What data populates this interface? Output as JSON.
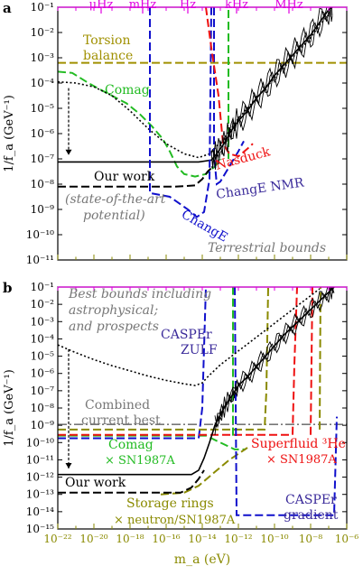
{
  "colors": {
    "magenta": "#e000e0",
    "olive": "#8a8a00",
    "torsion": "#a09000",
    "green": "#22bb22",
    "blue": "#1010cc",
    "red": "#ee1111",
    "black": "#000000",
    "gray": "#777777",
    "purple": "#3a2a9a"
  },
  "chart_data": [
    {
      "type": "line",
      "panel_label": "a",
      "ylabel": "1/f_a (GeV⁻¹)",
      "xlabel": "",
      "xscale": "log",
      "yscale": "log",
      "xlim": [
        1e-22,
        1e-06
      ],
      "ylim": [
        1e-11,
        0.1
      ],
      "x_ticks": [],
      "y_ticks": [
        "10⁻¹¹",
        "10⁻¹⁰",
        "10⁻⁹",
        "10⁻⁸",
        "10⁻⁷",
        "10⁻⁶",
        "10⁻⁵",
        "10⁻⁴",
        "10⁻³",
        "10⁻²",
        "10⁻¹"
      ],
      "top_axis_ticks": [
        "μHz",
        "mHz",
        "Hz",
        "kHz",
        "MHz"
      ],
      "annotations": [
        {
          "text": "Torsion",
          "role": "torsion1"
        },
        {
          "text": "balance",
          "role": "torsion2"
        },
        {
          "text": "Comag",
          "role": "comag"
        },
        {
          "text": "Nasduck",
          "role": "nasduck"
        },
        {
          "text": "Our work",
          "role": "ourwork"
        },
        {
          "text": "(state-of-the-art",
          "role": "sota1"
        },
        {
          "text": "potential)",
          "role": "sota2"
        },
        {
          "text": "ChangE",
          "role": "change"
        },
        {
          "text": "ChangE NMR",
          "role": "changenmr"
        },
        {
          "text": "Terrestrial bounds",
          "role": "terrestrial"
        }
      ],
      "series": [
        {
          "role": "torsion",
          "style": "dashed",
          "color": "#a09000",
          "points": [
            [
              -22,
              -3.2
            ],
            [
              -6,
              -3.2
            ]
          ]
        },
        {
          "role": "comag",
          "style": "dashed",
          "color": "#22bb22",
          "points": [
            [
              -22,
              -3.55
            ],
            [
              -21.2,
              -3.6
            ],
            [
              -20.3,
              -4.0
            ],
            [
              -19.8,
              -4.2
            ],
            [
              -19.0,
              -4.5
            ],
            [
              -18.2,
              -4.8
            ],
            [
              -17.5,
              -5.2
            ],
            [
              -16.8,
              -5.7
            ],
            [
              -16.2,
              -6.2
            ],
            [
              -15.8,
              -6.7
            ],
            [
              -15.4,
              -7.3
            ],
            [
              -15.0,
              -7.6
            ],
            [
              -14.4,
              -7.7
            ],
            [
              -13.8,
              -7.6
            ],
            [
              -13.3,
              -7.3
            ],
            [
              -13.0,
              -7.0
            ]
          ]
        },
        {
          "role": "comag_vertical",
          "style": "dashed",
          "color": "#22bb22",
          "points": [
            [
              -12.55,
              -7.0
            ],
            [
              -12.55,
              -1.0
            ]
          ]
        },
        {
          "role": "black_dotted",
          "style": "dotted",
          "color": "#000000",
          "points": [
            [
              -22,
              -3.95
            ],
            [
              -21,
              -4.0
            ],
            [
              -20,
              -4.15
            ],
            [
              -19,
              -4.5
            ],
            [
              -18,
              -5.1
            ],
            [
              -17,
              -5.8
            ],
            [
              -16,
              -6.4
            ],
            [
              -15,
              -6.8
            ],
            [
              -14.2,
              -6.95
            ],
            [
              -13.6,
              -6.8
            ],
            [
              -13.2,
              -6.5
            ],
            [
              -12.8,
              -6.2
            ],
            [
              -12.4,
              -5.8
            ],
            [
              -12.0,
              -5.4
            ],
            [
              -11.5,
              -5.0
            ],
            [
              -11.0,
              -4.6
            ],
            [
              -10.5,
              -4.2
            ],
            [
              -10.0,
              -3.8
            ],
            [
              -9.5,
              -3.4
            ],
            [
              -9.0,
              -3.0
            ],
            [
              -8.5,
              -2.6
            ],
            [
              -8.0,
              -2.2
            ],
            [
              -7.5,
              -1.7
            ],
            [
              -7.0,
              -1.3
            ]
          ]
        },
        {
          "role": "our_work_solid",
          "style": "solid",
          "color": "#000000",
          "points": [
            [
              -22,
              -7.12
            ],
            [
              -14.2,
              -7.12
            ],
            [
              -13.5,
              -7.05
            ],
            [
              -13.2,
              -6.8
            ],
            [
              -12.8,
              -6.4
            ],
            [
              -12.4,
              -5.9
            ],
            [
              -12.0,
              -5.5
            ],
            [
              -11.5,
              -5.1
            ],
            [
              -11.0,
              -4.6
            ],
            [
              -10.5,
              -4.2
            ],
            [
              -10.0,
              -3.7
            ],
            [
              -9.5,
              -3.3
            ],
            [
              -9.0,
              -2.9
            ],
            [
              -8.5,
              -2.5
            ],
            [
              -8.0,
              -2.1
            ],
            [
              -7.5,
              -1.6
            ],
            [
              -7.0,
              -1.1
            ],
            [
              -6.8,
              -1.0
            ]
          ]
        },
        {
          "role": "our_work_dashed",
          "style": "dashed",
          "color": "#000000",
          "points": [
            [
              -22,
              -8.1
            ],
            [
              -15.5,
              -8.1
            ],
            [
              -14.4,
              -8.05
            ],
            [
              -14.0,
              -7.8
            ],
            [
              -13.7,
              -7.5
            ],
            [
              -13.4,
              -7.3
            ]
          ]
        },
        {
          "role": "change",
          "style": "dashed",
          "color": "#1010cc",
          "points": [
            [
              -16.9,
              -1.0
            ],
            [
              -16.9,
              -8.35
            ],
            [
              -15.8,
              -8.5
            ],
            [
              -14.8,
              -9.0
            ],
            [
              -14.3,
              -9.3
            ],
            [
              -13.9,
              -9.1
            ],
            [
              -13.6,
              -7.8
            ],
            [
              -13.5,
              -1.0
            ]
          ]
        },
        {
          "role": "changenmr",
          "style": "dashed",
          "color": "#1010cc",
          "points": [
            [
              -13.35,
              -1.0
            ],
            [
              -13.35,
              -6.8
            ],
            [
              -13.2,
              -8.0
            ],
            [
              -13.0,
              -7.9
            ],
            [
              -12.5,
              -7.3
            ],
            [
              -12.0,
              -6.7
            ],
            [
              -11.7,
              -6.3
            ]
          ]
        },
        {
          "role": "nasduck",
          "style": "dashed",
          "color": "#ee1111",
          "points": [
            [
              -13.8,
              -1.0
            ],
            [
              -13.5,
              -2.6
            ],
            [
              -13.1,
              -4.5
            ],
            [
              -12.85,
              -6.4
            ],
            [
              -12.5,
              -6.8
            ],
            [
              -12.0,
              -6.9
            ],
            [
              -11.5,
              -6.6
            ],
            [
              -11.2,
              -6.4
            ]
          ]
        }
      ]
    },
    {
      "type": "line",
      "panel_label": "b",
      "ylabel": "1/f_a (GeV⁻¹)",
      "xlabel": "m_a (eV)",
      "xscale": "log",
      "yscale": "log",
      "xlim": [
        1e-22,
        1e-06
      ],
      "ylim": [
        1e-15,
        0.1
      ],
      "x_ticks": [
        "10⁻²²",
        "10⁻²⁰",
        "10⁻¹⁸",
        "10⁻¹⁶",
        "10⁻¹⁴",
        "10⁻¹²",
        "10⁻¹⁰",
        "10⁻⁸",
        "10⁻⁶"
      ],
      "y_ticks": [
        "10⁻¹⁵",
        "10⁻¹⁴",
        "10⁻¹³",
        "10⁻¹²",
        "10⁻¹¹",
        "10⁻¹⁰",
        "10⁻⁹",
        "10⁻⁸",
        "10⁻⁷",
        "10⁻⁶",
        "10⁻⁵",
        "10⁻⁴",
        "10⁻³",
        "10⁻²",
        "10⁻¹"
      ],
      "annotations": [
        {
          "text": "Best bounds including",
          "role": "best1"
        },
        {
          "text": "astrophysical;",
          "role": "best2"
        },
        {
          "text": "and prospects",
          "role": "best3"
        },
        {
          "text": "CASPEr",
          "role": "zulf1"
        },
        {
          "text": "ZULF",
          "role": "zulf2"
        },
        {
          "text": "Combined",
          "role": "comb1"
        },
        {
          "text": "current best",
          "role": "comb2"
        },
        {
          "text": "Comag",
          "role": "comag"
        },
        {
          "text": "× SN1987A",
          "role": "comag_sn"
        },
        {
          "text": "Superfluid ³He",
          "role": "he3"
        },
        {
          "text": "× SN1987A",
          "role": "he3_sn"
        },
        {
          "text": "Our work",
          "role": "ourwork"
        },
        {
          "text": "Storage rings",
          "role": "sr1"
        },
        {
          "text": "× neutron/SN1987A",
          "role": "sr2"
        },
        {
          "text": "CASPEr",
          "role": "grad1"
        },
        {
          "text": "gradient",
          "role": "grad2"
        }
      ],
      "series": [
        {
          "role": "combined",
          "style": "dashdot",
          "color": "#777777",
          "points": [
            [
              -22,
              -8.95
            ],
            [
              -6,
              -8.95
            ]
          ]
        },
        {
          "role": "comag_sn",
          "style": "dashed",
          "color": "#22bb22",
          "points": [
            [
              -22,
              -9.6
            ],
            [
              -13.8,
              -9.6
            ],
            [
              -13.0,
              -10.0
            ],
            [
              -12.2,
              -10.4
            ],
            [
              -11.6,
              -10.4
            ]
          ]
        },
        {
          "role": "comag_vertical",
          "style": "dashed",
          "color": "#22bb22",
          "points": [
            [
              -12.3,
              -9.6
            ],
            [
              -12.3,
              -1.0
            ]
          ]
        },
        {
          "role": "zulf",
          "style": "dashed",
          "color": "#1010cc",
          "points": [
            [
              -22,
              -9.75
            ],
            [
              -14.2,
              -9.75
            ],
            [
              -14.0,
              -8.0
            ],
            [
              -13.8,
              -1.0
            ]
          ]
        },
        {
          "role": "he3",
          "style": "dashed",
          "color": "#ee1111",
          "points": [
            [
              -22,
              -9.55
            ],
            [
              -9.0,
              -9.55
            ],
            [
              -8.9,
              -5.5
            ],
            [
              -8.75,
              -1.0
            ]
          ]
        },
        {
          "role": "he3_right",
          "style": "dashed",
          "color": "#ee1111",
          "points": [
            [
              -8.0,
              -9.55
            ],
            [
              -7.9,
              -1.0
            ]
          ]
        },
        {
          "role": "storage",
          "style": "dashed",
          "color": "#8a8a00",
          "points": [
            [
              -22,
              -9.25
            ],
            [
              -10.55,
              -9.25
            ],
            [
              -10.45,
              -7.0
            ],
            [
              -10.35,
              -1.0
            ]
          ]
        },
        {
          "role": "storage_low",
          "style": "dashed",
          "color": "#8a8a00",
          "points": [
            [
              -16.3,
              -13.0
            ],
            [
              -15.0,
              -12.9
            ],
            [
              -14.2,
              -12.5
            ],
            [
              -13.3,
              -11.7
            ],
            [
              -12.5,
              -11.0
            ],
            [
              -11.5,
              -10.3
            ]
          ]
        },
        {
          "role": "storage_right",
          "style": "dashed",
          "color": "#8a8a00",
          "points": [
            [
              -7.5,
              -9.25
            ],
            [
              -7.45,
              -1.0
            ]
          ]
        },
        {
          "role": "grad",
          "style": "dashed",
          "color": "#1010cc",
          "points": [
            [
              -12.2,
              -1.0
            ],
            [
              -12.1,
              -14.2
            ],
            [
              -9.0,
              -14.2
            ],
            [
              -6.7,
              -14.2
            ],
            [
              -6.55,
              -8.5
            ]
          ]
        },
        {
          "role": "black_dotted",
          "style": "dotted",
          "color": "#000000",
          "points": [
            [
              -22,
              -4.35
            ],
            [
              -21,
              -4.8
            ],
            [
              -20,
              -5.2
            ],
            [
              -19,
              -5.55
            ],
            [
              -18,
              -5.85
            ],
            [
              -17,
              -6.15
            ],
            [
              -16,
              -6.4
            ],
            [
              -15,
              -6.6
            ],
            [
              -14.4,
              -6.7
            ],
            [
              -14.0,
              -6.55
            ],
            [
              -13.7,
              -6.2
            ],
            [
              -13.4,
              -5.9
            ],
            [
              -13.0,
              -5.5
            ],
            [
              -12.5,
              -5.1
            ],
            [
              -12.0,
              -4.7
            ],
            [
              -11.5,
              -4.3
            ],
            [
              -11.0,
              -3.9
            ],
            [
              -10.5,
              -3.5
            ],
            [
              -10.0,
              -3.1
            ],
            [
              -9.5,
              -2.7
            ],
            [
              -9.0,
              -2.3
            ],
            [
              -8.5,
              -1.9
            ],
            [
              -8.0,
              -1.5
            ],
            [
              -7.5,
              -1.1
            ]
          ]
        },
        {
          "role": "our_work_solid",
          "style": "solid",
          "color": "#000000",
          "points": [
            [
              -22,
              -11.85
            ],
            [
              -14.6,
              -11.85
            ],
            [
              -14.2,
              -11.6
            ],
            [
              -13.9,
              -10.9
            ],
            [
              -13.6,
              -10.0
            ],
            [
              -13.3,
              -9.0
            ],
            [
              -13.0,
              -8.4
            ],
            [
              -12.7,
              -7.8
            ],
            [
              -12.3,
              -7.2
            ],
            [
              -12.0,
              -6.7
            ],
            [
              -11.5,
              -6.2
            ],
            [
              -11.0,
              -5.6
            ],
            [
              -10.5,
              -5.0
            ],
            [
              -10.0,
              -4.4
            ],
            [
              -9.5,
              -3.8
            ],
            [
              -9.0,
              -3.3
            ],
            [
              -8.5,
              -2.8
            ],
            [
              -8.0,
              -2.3
            ],
            [
              -7.5,
              -1.8
            ],
            [
              -7.0,
              -1.3
            ],
            [
              -6.7,
              -1.0
            ]
          ]
        },
        {
          "role": "our_work_dashed",
          "style": "dashed",
          "color": "#000000",
          "points": [
            [
              -22,
              -12.9
            ],
            [
              -15.2,
              -12.9
            ],
            [
              -14.6,
              -12.6
            ],
            [
              -14.2,
              -12.1
            ],
            [
              -13.9,
              -11.6
            ]
          ]
        }
      ]
    }
  ]
}
